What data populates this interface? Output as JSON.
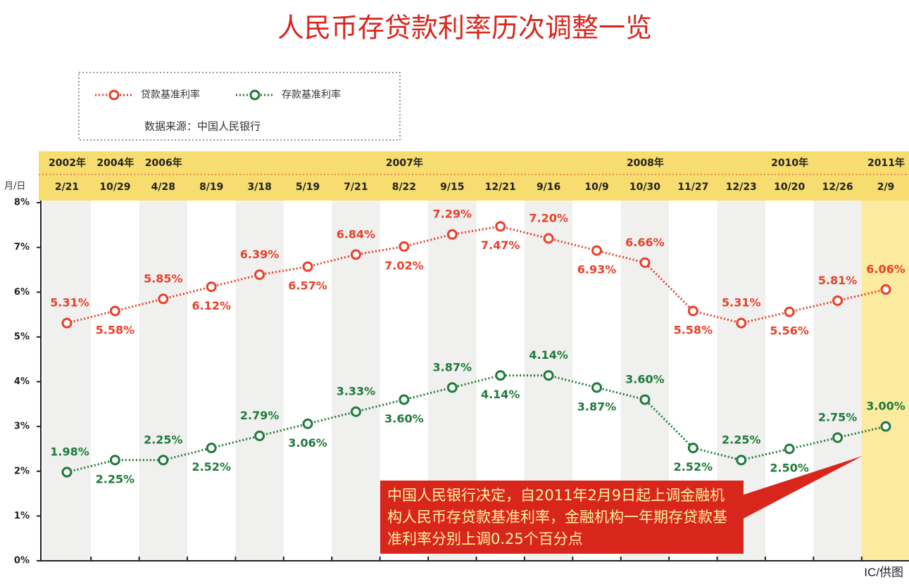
{
  "chart_data": {
    "type": "line",
    "title": "人民币存贷款利率历次调整一览",
    "source": "数据来源：中国人民银行",
    "x_label": "月/日",
    "categories": [
      "2/21",
      "10/29",
      "4/28",
      "8/19",
      "3/18",
      "5/19",
      "7/21",
      "8/22",
      "9/15",
      "12/21",
      "9/16",
      "10/9",
      "10/30",
      "11/27",
      "12/23",
      "10/20",
      "12/26",
      "2/9"
    ],
    "years": [
      "2002年",
      "2004年",
      "2006年",
      null,
      null,
      null,
      null,
      "2007年",
      null,
      null,
      null,
      null,
      "2008年",
      null,
      null,
      "2010年",
      null,
      "2011年"
    ],
    "series": [
      {
        "name": "贷款基准利率",
        "color": "#e8402a",
        "values": [
          5.31,
          5.58,
          5.85,
          6.12,
          6.39,
          6.57,
          6.84,
          7.02,
          7.29,
          7.47,
          7.2,
          6.93,
          6.66,
          5.58,
          5.31,
          5.56,
          5.81,
          6.06
        ],
        "value_labels": [
          "5.31%",
          "5.58%",
          "5.85%",
          "6.12%",
          "6.39%",
          "6.57%",
          "6.84%",
          "7.02%",
          "7.29%",
          "7.47%",
          "7.20%",
          "6.93%",
          "6.66%",
          "5.58%",
          "5.31%",
          "5.56%",
          "5.81%",
          "6.06%"
        ]
      },
      {
        "name": "存款基准利率",
        "color": "#1f7a3a",
        "values": [
          1.98,
          2.25,
          2.25,
          2.52,
          2.79,
          3.06,
          3.33,
          3.6,
          3.87,
          4.14,
          4.14,
          3.87,
          3.6,
          2.52,
          2.25,
          2.5,
          2.75,
          3.0
        ],
        "value_labels": [
          "1.98%",
          "2.25%",
          "2.25%",
          "2.52%",
          "2.79%",
          "3.06%",
          "3.33%",
          "3.60%",
          "3.87%",
          "4.14%",
          "4.14%",
          "3.87%",
          "3.60%",
          "2.52%",
          "2.25%",
          "2.50%",
          "2.75%",
          "3.00%"
        ]
      }
    ],
    "ylim": [
      0,
      8
    ],
    "yticks": [
      {
        "value": 0,
        "label": "0%"
      },
      {
        "value": 1,
        "label": "1%"
      },
      {
        "value": 2,
        "label": "2%"
      },
      {
        "value": 3,
        "label": "3%"
      },
      {
        "value": 4,
        "label": "4%"
      },
      {
        "value": 5,
        "label": "5%"
      },
      {
        "value": 6,
        "label": "6%"
      },
      {
        "value": 7,
        "label": "7%"
      },
      {
        "value": 8,
        "label": "8%"
      }
    ],
    "annotation": "中国人民银行决定，自2011年2月9日起上调金融机构人民币存贷款基准利率，金融机构一年期存贷款基准利率分别上调0.25个百分点",
    "credit": "IC/供图"
  }
}
